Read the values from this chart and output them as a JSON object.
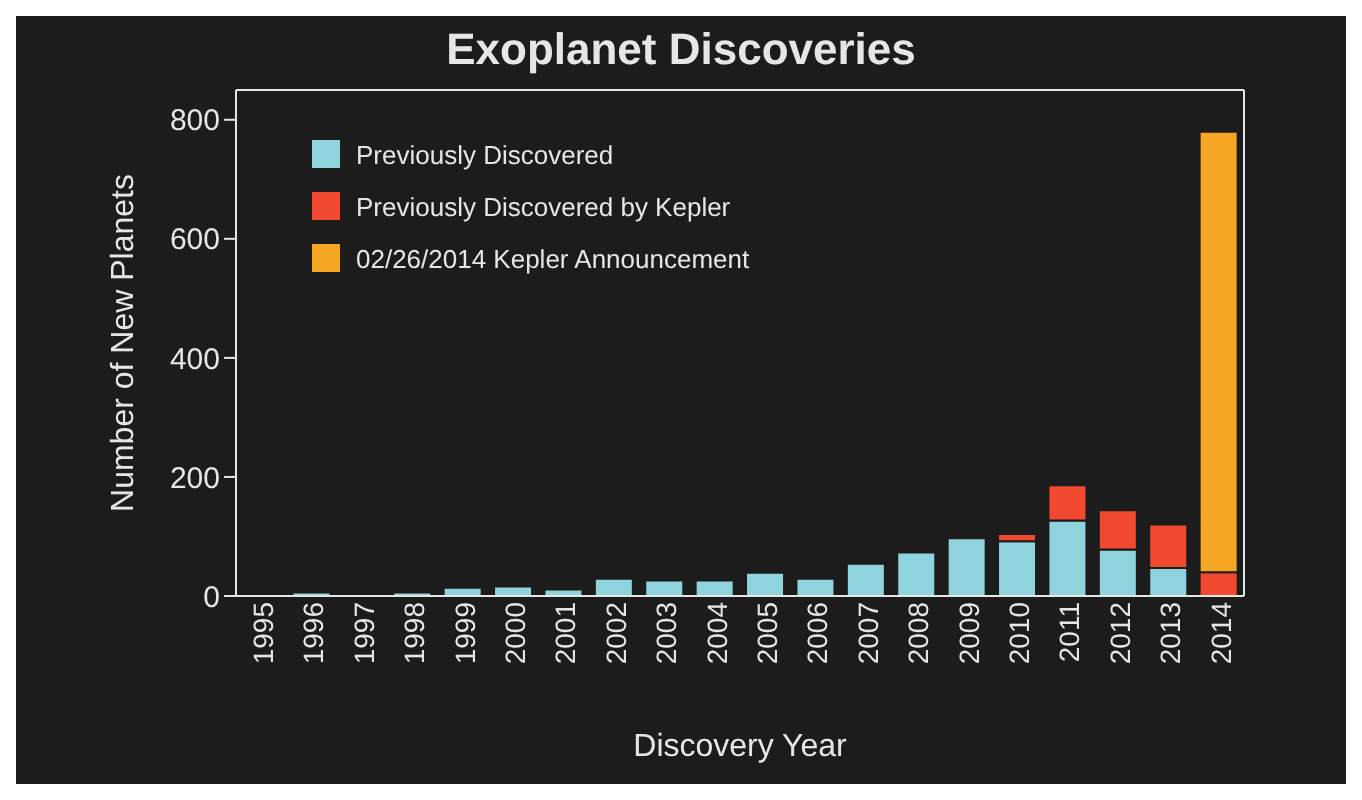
{
  "chart_data": {
    "type": "bar",
    "title": "Exoplanet Discoveries",
    "xlabel": "Discovery Year",
    "ylabel": "Number of New Planets",
    "categories": [
      "1995",
      "1996",
      "1997",
      "1998",
      "1999",
      "2000",
      "2001",
      "2002",
      "2003",
      "2004",
      "2005",
      "2006",
      "2007",
      "2008",
      "2009",
      "2010",
      "2011",
      "2012",
      "2013",
      "2014"
    ],
    "stacked": true,
    "series": [
      {
        "name": "Previously Discovered",
        "color": "#8fd3dc",
        "values": [
          1,
          6,
          2,
          6,
          14,
          16,
          11,
          29,
          26,
          26,
          39,
          29,
          54,
          73,
          97,
          92,
          127,
          78,
          47,
          0
        ]
      },
      {
        "name": "Previously Discovered by Kepler",
        "color": "#f0492f",
        "values": [
          0,
          0,
          0,
          0,
          0,
          0,
          0,
          0,
          0,
          0,
          0,
          0,
          0,
          0,
          0,
          12,
          59,
          66,
          73,
          40
        ]
      },
      {
        "name": "02/26/2014 Kepler Announcement",
        "color": "#f5a623",
        "values": [
          0,
          0,
          0,
          0,
          0,
          0,
          0,
          0,
          0,
          0,
          0,
          0,
          0,
          0,
          0,
          0,
          0,
          0,
          0,
          740
        ]
      }
    ],
    "ylim": [
      0,
      850
    ],
    "yticks": [
      0,
      200,
      400,
      600,
      800
    ],
    "grid": false,
    "legend": "top left"
  }
}
